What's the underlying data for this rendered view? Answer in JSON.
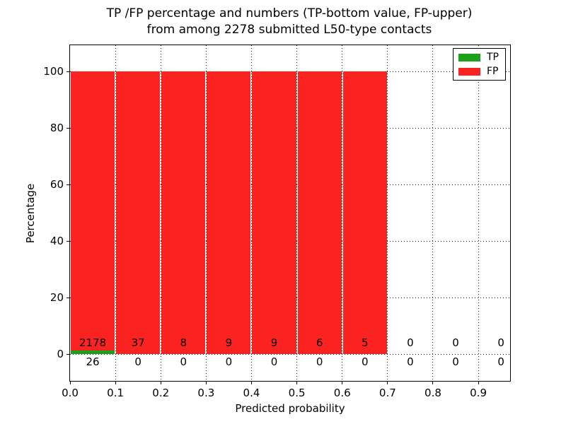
{
  "figure": {
    "title_line1": "TP /FP percentage and numbers (TP-bottom value, FP-upper)",
    "title_line2": "from among 2278 submitted L50-type contacts",
    "xlabel": "Predicted probability",
    "ylabel": "Percentage"
  },
  "legend": {
    "items": [
      {
        "label": "TP",
        "color": "#1da11d"
      },
      {
        "label": "FP",
        "color": "#fb2222"
      }
    ]
  },
  "chart_data": {
    "type": "bar",
    "stacked": true,
    "title": "TP /FP percentage and numbers (TP-bottom value, FP-upper) from among 2278 submitted L50-type contacts",
    "xlabel": "Predicted probability",
    "ylabel": "Percentage",
    "total_submitted": 2278,
    "bin_starts": [
      0.0,
      0.1,
      0.2,
      0.3,
      0.4,
      0.5,
      0.6,
      0.7,
      0.8,
      0.9
    ],
    "bin_width": 0.1,
    "series": [
      {
        "name": "TP",
        "color": "#1da11d",
        "counts": [
          26,
          0,
          0,
          0,
          0,
          0,
          0,
          0,
          0,
          0
        ]
      },
      {
        "name": "FP",
        "color": "#fb2222",
        "counts": [
          2178,
          37,
          8,
          9,
          9,
          6,
          5,
          0,
          0,
          0
        ]
      }
    ],
    "percent_tp": [
      1.18,
      0,
      0,
      0,
      0,
      0,
      0,
      0,
      0,
      0
    ],
    "percent_fp": [
      98.82,
      100,
      100,
      100,
      100,
      100,
      100,
      0,
      0,
      0
    ],
    "x_ticks": [
      "0.0",
      "0.1",
      "0.2",
      "0.3",
      "0.4",
      "0.5",
      "0.6",
      "0.7",
      "0.8",
      "0.9"
    ],
    "y_ticks": [
      0,
      20,
      40,
      60,
      80,
      100
    ],
    "xlim": [
      0,
      0.97
    ],
    "ylim": [
      -9.5,
      109.3
    ],
    "grid": true,
    "grid_style": "dotted",
    "legend_position": "upper right",
    "fp_label_y": 4,
    "tp_label_y": -2.75
  }
}
